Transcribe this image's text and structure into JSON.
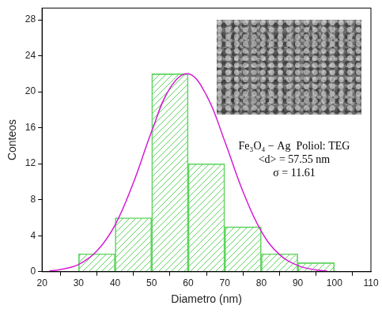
{
  "chart_data": {
    "type": "histogram",
    "x_label": "Diametro (nm)",
    "y_label": "Conteos",
    "bins": [
      30,
      40,
      50,
      60,
      70,
      80,
      90,
      100
    ],
    "values": [
      2,
      6,
      22,
      12,
      5,
      2,
      1
    ],
    "color": "#5fd35f",
    "fit": {
      "type": "line",
      "color": "#d41cd4",
      "x": [
        22,
        25,
        30,
        35,
        40,
        45,
        50,
        55,
        60,
        65,
        70,
        75,
        80,
        85,
        90,
        95,
        98
      ],
      "values": [
        0.1,
        0.24,
        0.8,
        2.3,
        5.2,
        9.9,
        15.6,
        20.4,
        22.0,
        19.6,
        14.5,
        8.9,
        4.5,
        1.9,
        0.7,
        0.2,
        0.1
      ]
    },
    "annotations": [
      "Fe₃O₄ − Ag  Poliol: TEG",
      "<d> = 57.55 nm",
      "σ = 11.61"
    ],
    "xlim": [
      20,
      110
    ],
    "xticks": [
      20,
      30,
      40,
      50,
      60,
      70,
      80,
      90,
      100,
      110
    ],
    "ylim": [
      0,
      29.3
    ],
    "yticks": [
      0,
      4,
      8,
      12,
      16,
      20,
      24,
      28
    ],
    "grid": false
  }
}
